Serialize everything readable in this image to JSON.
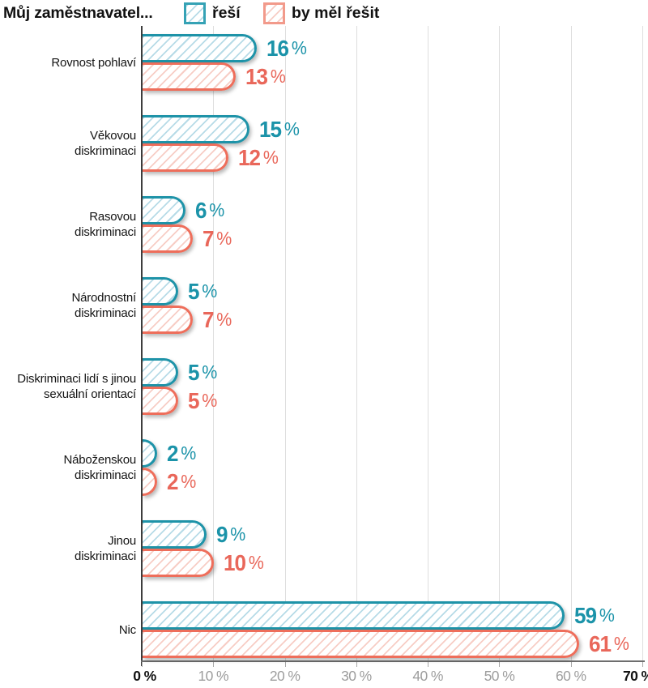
{
  "legend": {
    "title": "Můj zaměstnavatel...",
    "items": [
      {
        "label": "řeší",
        "slug": "resi",
        "stroke": "#1e93a8",
        "hatch": "#b7dbe7",
        "text": "#1b93a9",
        "swatch_stroke": "#35a2b5"
      },
      {
        "label": "by měl řešit",
        "slug": "by-mel-resit",
        "stroke": "#ee6e5b",
        "hatch": "#f7cdc5",
        "text": "#e9675a",
        "swatch_stroke": "#f29a8b"
      }
    ]
  },
  "rows": [
    {
      "label_lines": [
        "Rovnost pohlaví"
      ]
    },
    {
      "label_lines": [
        "Věkovou",
        "diskriminaci"
      ]
    },
    {
      "label_lines": [
        "Rasovou",
        "diskriminaci"
      ]
    },
    {
      "label_lines": [
        "Národnostní",
        "diskriminaci"
      ]
    },
    {
      "label_lines": [
        "Diskriminaci lidí s jinou",
        "sexuální orientací"
      ]
    },
    {
      "label_lines": [
        "Náboženskou",
        "diskriminaci"
      ]
    },
    {
      "label_lines": [
        "Jinou",
        "diskriminaci"
      ]
    },
    {
      "label_lines": [
        "Nic"
      ]
    }
  ],
  "axis": {
    "ticks": [
      {
        "label": "0 %",
        "strong": true
      },
      {
        "label": "10 %",
        "strong": false
      },
      {
        "label": "20 %",
        "strong": false
      },
      {
        "label": "30 %",
        "strong": false
      },
      {
        "label": "40 %",
        "strong": false
      },
      {
        "label": "50 %",
        "strong": false
      },
      {
        "label": "60 %",
        "strong": false
      },
      {
        "label": "70 %",
        "strong": true
      }
    ]
  },
  "chart_data": {
    "type": "bar",
    "orientation": "horizontal",
    "title": "Můj zaměstnavatel...",
    "categories": [
      "Rovnost pohlaví",
      "Věkovou diskriminaci",
      "Rasovou diskriminaci",
      "Národnostní diskriminaci",
      "Diskriminaci lidí s jinou sexuální orientací",
      "Náboženskou diskriminaci",
      "Jinou diskriminaci",
      "Nic"
    ],
    "series": [
      {
        "name": "řeší",
        "values": [
          16,
          15,
          6,
          5,
          5,
          2,
          9,
          59
        ]
      },
      {
        "name": "by měl řešit",
        "values": [
          13,
          12,
          7,
          7,
          5,
          2,
          10,
          61
        ]
      }
    ],
    "value_suffix": " %",
    "xlim": [
      0,
      70
    ],
    "x_tick_labels": [
      "0 %",
      "10 %",
      "20 %",
      "30 %",
      "40 %",
      "50 %",
      "60 %",
      "70 %"
    ],
    "grid": true,
    "legend_position": "top"
  }
}
